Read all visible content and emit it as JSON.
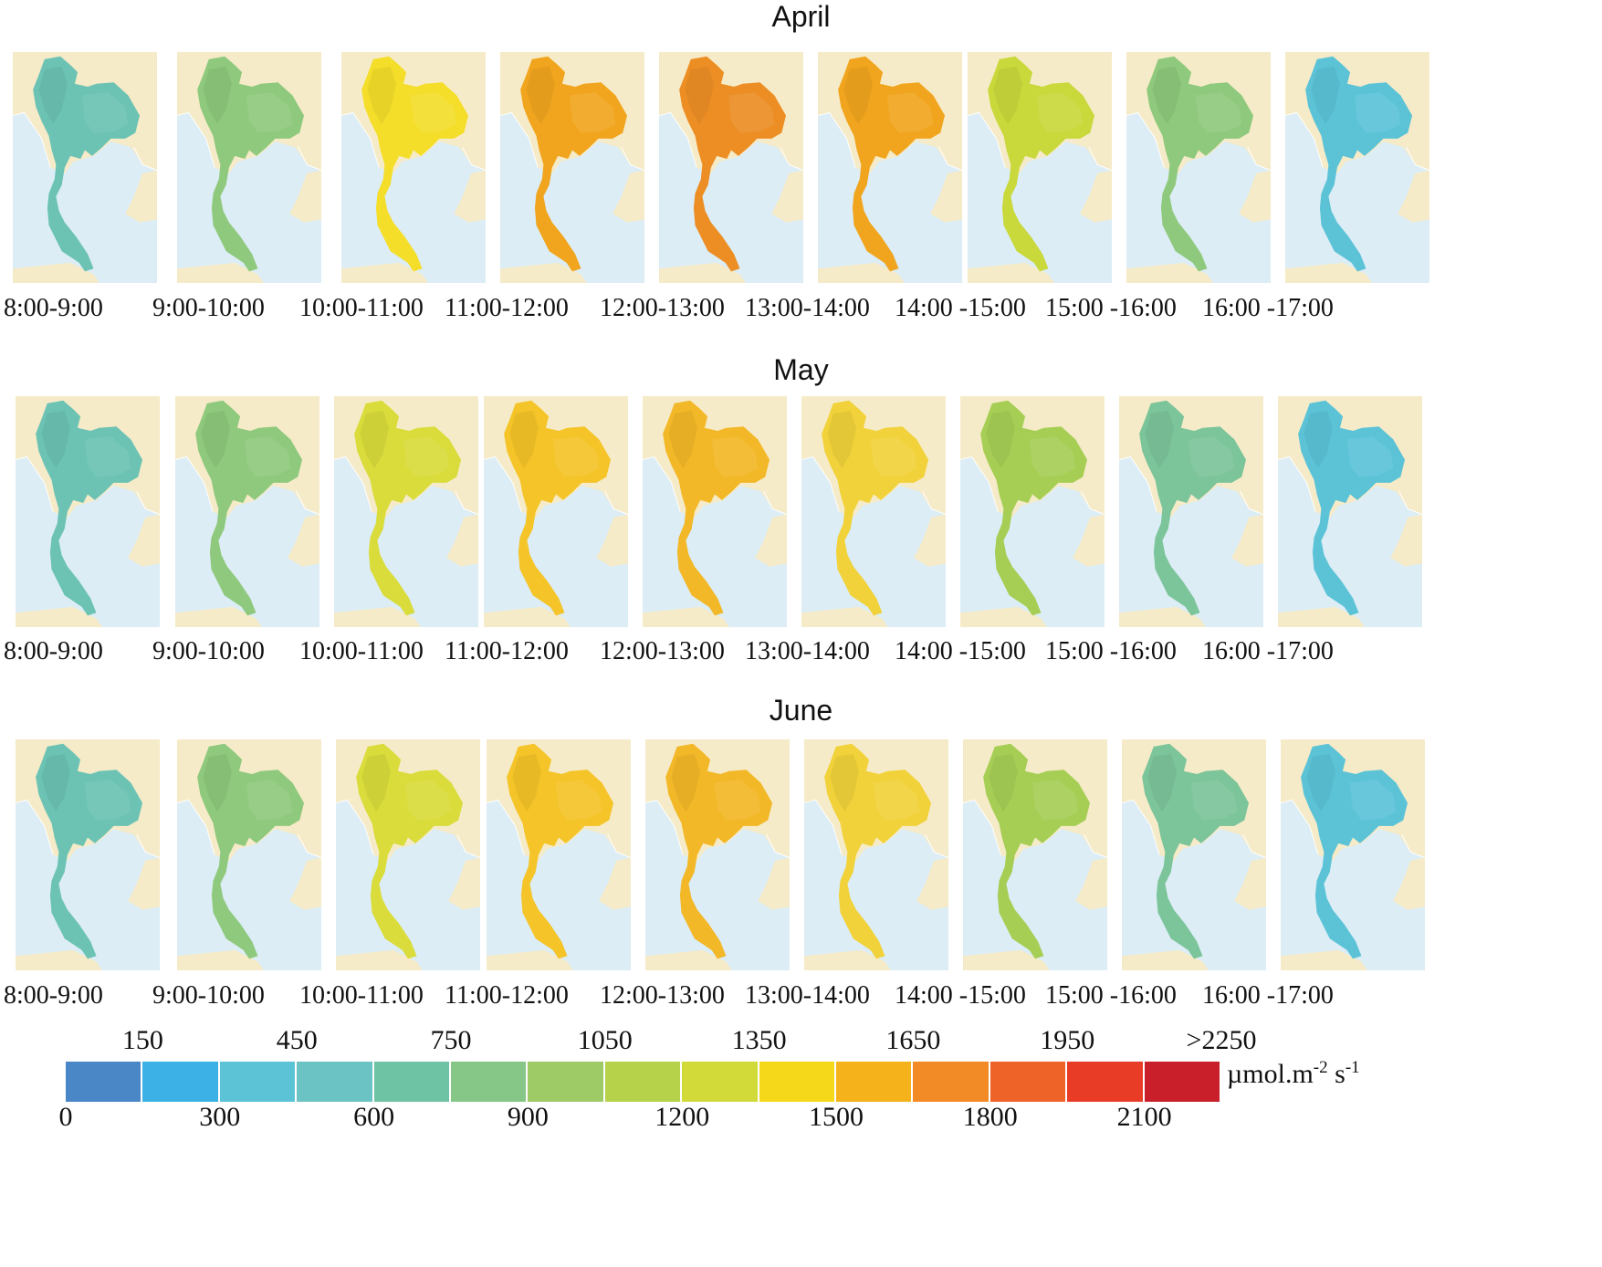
{
  "months": [
    {
      "name": "April",
      "panel_colors": [
        "#6cc3b4",
        "#8fc97d",
        "#f4de2a",
        "#f1a51e",
        "#ec8e24",
        "#f1a51e",
        "#c9d83b",
        "#8fc97d",
        "#5cc3d7"
      ],
      "times": [
        "8:00-9:00",
        "9:00-10:00",
        "10:00-11:00",
        "11:00-12:00",
        "12:00-13:00",
        "13:00-14:00",
        "14:00 -15:00",
        "15:00 -16:00",
        "16:00 -17:00"
      ]
    },
    {
      "name": "May",
      "panel_colors": [
        "#6cc3b4",
        "#8fc97d",
        "#d9dc3a",
        "#f4c428",
        "#f2b828",
        "#f1d23a",
        "#a6ce55",
        "#7cc49a",
        "#5cc3d7"
      ],
      "times": [
        "8:00-9:00",
        "9:00-10:00",
        "10:00-11:00",
        "11:00-12:00",
        "12:00-13:00",
        "13:00-14:00",
        "14:00 -15:00",
        "15:00 -16:00",
        "16:00 -17:00"
      ]
    },
    {
      "name": "June",
      "panel_colors": [
        "#6cc3b4",
        "#8fc97d",
        "#d9dc3a",
        "#f4c428",
        "#f2b828",
        "#f1d23a",
        "#a6ce55",
        "#7cc49a",
        "#5cc3d7"
      ],
      "times": [
        "8:00-9:00",
        "9:00-10:00",
        "10:00-11:00",
        "11:00-12:00",
        "12:00-13:00",
        "13:00-14:00",
        "14:00 -15:00",
        "15:00 -16:00",
        "16:00 -17:00"
      ]
    }
  ],
  "map_base_colors": {
    "sea": "#dcedf5",
    "land": "#f6ebc8"
  },
  "colorbar": {
    "bins": [
      {
        "range": "0-150",
        "color": "#4a87c6"
      },
      {
        "range": "150-300",
        "color": "#3bb1e5"
      },
      {
        "range": "300-450",
        "color": "#5cc3d7"
      },
      {
        "range": "450-600",
        "color": "#6cc3c4"
      },
      {
        "range": "600-750",
        "color": "#6fc3a5"
      },
      {
        "range": "750-900",
        "color": "#86c787"
      },
      {
        "range": "900-1050",
        "color": "#9ecb66"
      },
      {
        "range": "1050-1200",
        "color": "#b6d24b"
      },
      {
        "range": "1200-1350",
        "color": "#d2da3a"
      },
      {
        "range": "1350-1500",
        "color": "#f6d81a"
      },
      {
        "range": "1500-1650",
        "color": "#f5b21a"
      },
      {
        "range": "1650-1800",
        "color": "#f28a25"
      },
      {
        "range": "1800-1950",
        "color": "#ee6328"
      },
      {
        "range": "1950-2100",
        "color": "#e83c27"
      },
      {
        "range": ">2100",
        "color": "#c81f2a"
      }
    ],
    "top_labels": [
      "150",
      "450",
      "750",
      "1050",
      "1350",
      "1650",
      "1950",
      ">2250"
    ],
    "bottom_labels": [
      "0",
      "300",
      "600",
      "900",
      "1200",
      "1500",
      "1800",
      "2100"
    ],
    "unit_main": "µmol.m",
    "unit_exp1": "-2",
    "unit_mid": " s",
    "unit_exp2": "-1"
  }
}
